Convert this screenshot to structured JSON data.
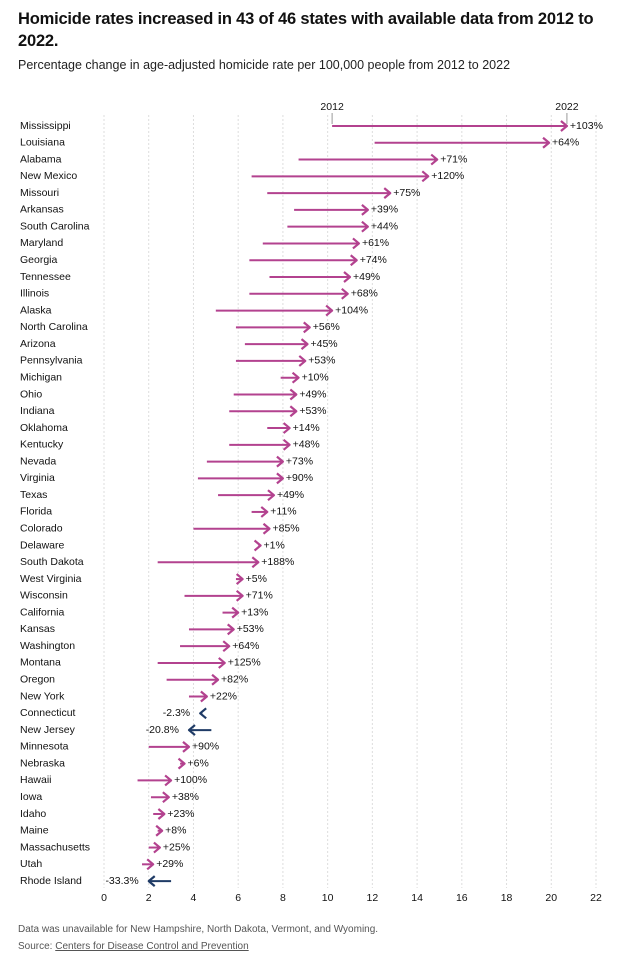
{
  "chart_data": {
    "type": "arrow",
    "title": "Homicide rates increased in 43 of 46 states with available data from 2012 to 2022.",
    "subtitle": "Percentage change in age-adjusted homicide rate per 100,000 people from 2012 to 2022",
    "note": "Data was unavailable for New Hampshire, North Dakota, Vermont, and Wyoming.",
    "source_label": "Source:",
    "source": "Centers for Disease Control and Prevention",
    "categories": [
      "Mississippi",
      "Louisiana",
      "Alabama",
      "New Mexico",
      "Missouri",
      "Arkansas",
      "South Carolina",
      "Maryland",
      "Georgia",
      "Tennessee",
      "Illinois",
      "Alaska",
      "North Carolina",
      "Arizona",
      "Pennsylvania",
      "Michigan",
      "Ohio",
      "Indiana",
      "Oklahoma",
      "Kentucky",
      "Nevada",
      "Virginia",
      "Texas",
      "Florida",
      "Colorado",
      "Delaware",
      "South Dakota",
      "West Virginia",
      "Wisconsin",
      "California",
      "Kansas",
      "Washington",
      "Montana",
      "Oregon",
      "New York",
      "Connecticut",
      "New Jersey",
      "Minnesota",
      "Nebraska",
      "Hawaii",
      "Iowa",
      "Idaho",
      "Maine",
      "Massachusetts",
      "Utah",
      "Rhode Island"
    ],
    "series": [
      {
        "name": "2012",
        "values": [
          10.2,
          12.1,
          8.7,
          6.6,
          7.3,
          8.5,
          8.2,
          7.1,
          6.5,
          7.4,
          6.5,
          5.0,
          5.9,
          6.3,
          5.9,
          7.9,
          5.8,
          5.6,
          7.3,
          5.6,
          4.6,
          4.2,
          5.1,
          6.6,
          4.0,
          6.9,
          2.4,
          5.9,
          3.6,
          5.3,
          3.8,
          3.4,
          2.4,
          2.8,
          3.8,
          4.4,
          4.8,
          2.0,
          3.4,
          1.5,
          2.1,
          2.2,
          2.4,
          2.0,
          1.7,
          3.0
        ]
      },
      {
        "name": "2022",
        "values": [
          20.7,
          19.9,
          14.9,
          14.5,
          12.8,
          11.8,
          11.8,
          11.4,
          11.3,
          11.0,
          10.9,
          10.2,
          9.2,
          9.1,
          9.0,
          8.7,
          8.6,
          8.6,
          8.3,
          8.3,
          8.0,
          8.0,
          7.6,
          7.3,
          7.4,
          7.0,
          6.9,
          6.2,
          6.2,
          6.0,
          5.8,
          5.6,
          5.4,
          5.1,
          4.6,
          4.3,
          3.8,
          3.8,
          3.6,
          3.0,
          2.9,
          2.7,
          2.6,
          2.5,
          2.2,
          2.0
        ]
      }
    ],
    "pct_change": {
      "values": [
        103,
        64,
        71,
        120,
        75,
        39,
        44,
        61,
        74,
        49,
        68,
        104,
        56,
        45,
        53,
        10,
        49,
        53,
        14,
        48,
        73,
        90,
        49,
        11,
        85,
        1,
        188,
        5,
        71,
        13,
        53,
        64,
        125,
        82,
        22,
        -2.3,
        -20.8,
        90,
        6,
        100,
        38,
        23,
        8,
        25,
        29,
        -33.3
      ],
      "value_labels": [
        "+103%",
        "+64%",
        "+71%",
        "+120%",
        "+75%",
        "+39%",
        "+44%",
        "+61%",
        "+74%",
        "+49%",
        "+68%",
        "+104%",
        "+56%",
        "+45%",
        "+53%",
        "+10%",
        "+49%",
        "+53%",
        "+14%",
        "+48%",
        "+73%",
        "+90%",
        "+49%",
        "+11%",
        "+85%",
        "+1%",
        "+188%",
        "+5%",
        "+71%",
        "+13%",
        "+53%",
        "+64%",
        "+125%",
        "+82%",
        "+22%",
        "-2.3%",
        "-20.8%",
        "+90%",
        "+6%",
        "+100%",
        "+38%",
        "+23%",
        "+8%",
        "+25%",
        "+29%",
        "-33.3%"
      ]
    },
    "colors": {
      "increase": "#b3428f",
      "decrease": "#1f3b66"
    },
    "xlim": [
      0,
      22
    ],
    "xticks": [
      0,
      2,
      4,
      6,
      8,
      10,
      12,
      14,
      16,
      18,
      20,
      22
    ],
    "grid": true
  }
}
